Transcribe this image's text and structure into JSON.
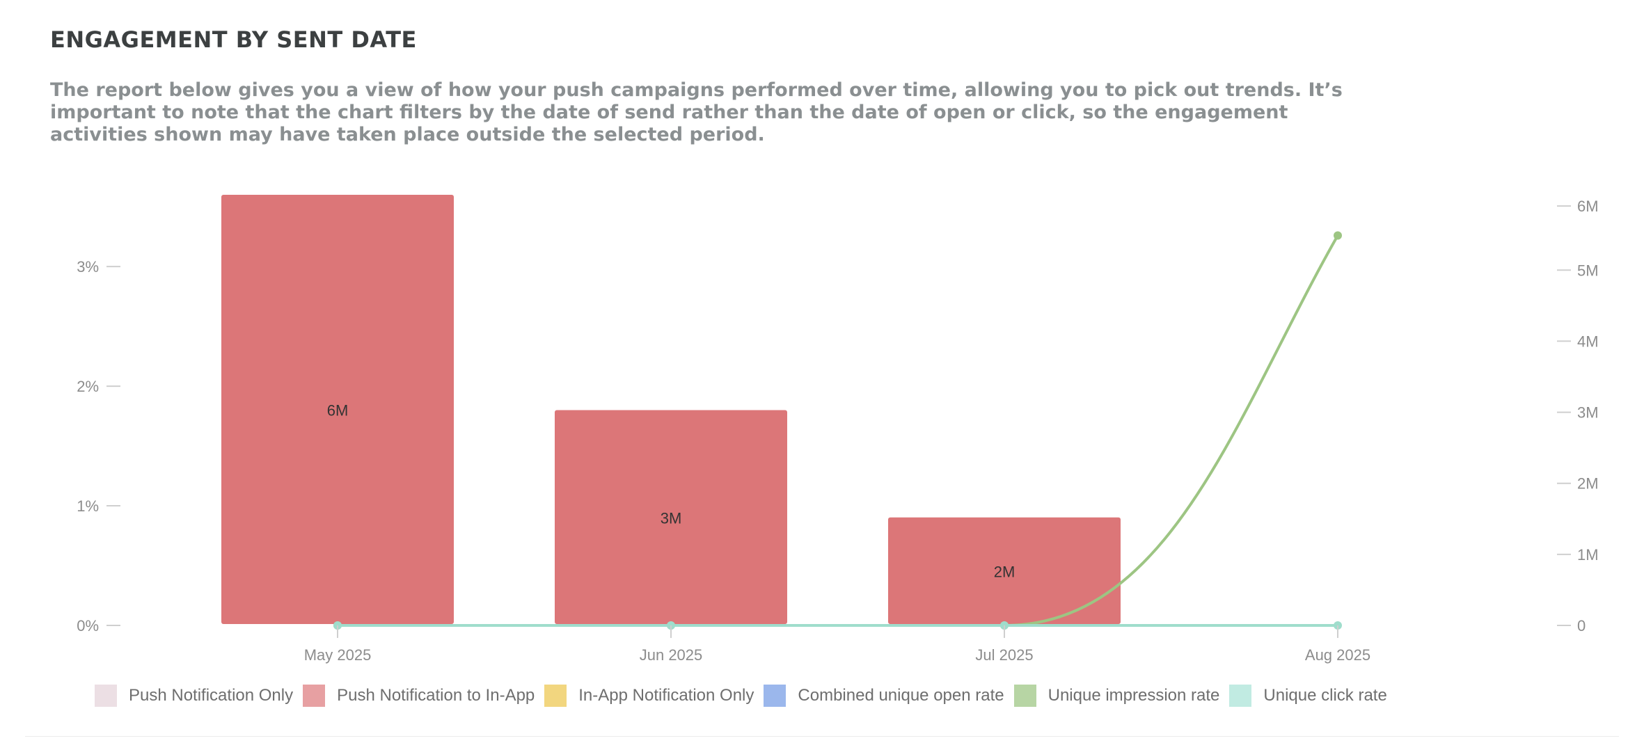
{
  "header": {
    "title": "ENGAGEMENT BY SENT DATE",
    "description": "The report below gives you a view of how your push campaigns performed over time, allowing you to pick out trends. It’s important to note that the chart filters by the date of send rather than the date of open or click, so the engagement activities shown may have taken place outside the selected period."
  },
  "chart_data": {
    "type": "bar",
    "title": "",
    "xlabel": "",
    "ylabel": "",
    "categories": [
      "May 2025",
      "Jun 2025",
      "Jul 2025",
      "Aug 2025"
    ],
    "left_axis": {
      "ticks": [
        "0%",
        "1%",
        "2%",
        "3%"
      ],
      "tick_values": [
        0,
        1,
        2,
        3
      ],
      "ylim": [
        0,
        3.6
      ]
    },
    "right_axis": {
      "ticks": [
        "0",
        "1M",
        "2M",
        "3M",
        "4M",
        "5M",
        "6M"
      ],
      "tick_values": [
        0,
        1000000,
        2000000,
        3000000,
        4000000,
        5000000,
        6000000
      ],
      "ylim": [
        0,
        6060000
      ]
    },
    "bars": {
      "series": "Push Notification to In-App",
      "axis": "right",
      "color": "#dc7678",
      "values": [
        6060000,
        3030000,
        1520000,
        null
      ],
      "labels": [
        "6M",
        "3M",
        "2M",
        ""
      ]
    },
    "lines": [
      {
        "name": "Unique impression rate",
        "axis": "left",
        "color": "#9dc583",
        "values": [
          0,
          0,
          0,
          3.26
        ]
      },
      {
        "name": "Unique click rate",
        "axis": "left",
        "color": "#9fddcc",
        "values": [
          0,
          0,
          0,
          0
        ]
      }
    ],
    "legend_position": "bottom-left",
    "grid": false,
    "legend": [
      {
        "name": "Push Notification Only",
        "color": "#ecdfe4"
      },
      {
        "name": "Push Notification to In-App",
        "color": "#e7a0a2"
      },
      {
        "name": "In-App Notification Only",
        "color": "#f2d67f"
      },
      {
        "name": "Combined unique open rate",
        "color": "#9bb7ec"
      },
      {
        "name": "Unique impression rate",
        "color": "#b7d5a4"
      },
      {
        "name": "Unique click rate",
        "color": "#c1ebe2"
      }
    ]
  }
}
